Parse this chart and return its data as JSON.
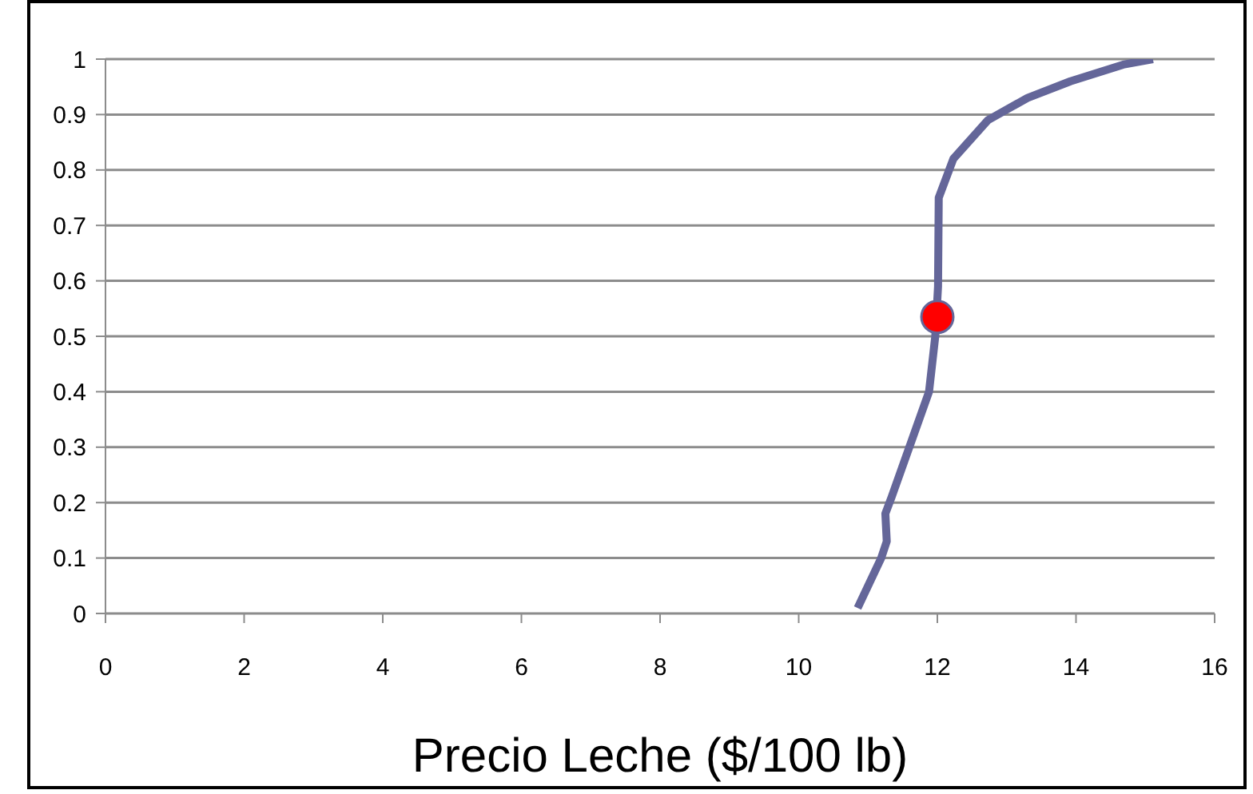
{
  "chart_data": {
    "type": "line",
    "xlabel": "Precio Leche ($/100 lb)",
    "series": [
      {
        "type": "line",
        "color": "#646699",
        "x": [
          10.85,
          11.19,
          11.27,
          11.25,
          11.34,
          11.88,
          11.97,
          12.01,
          12.02,
          12.23,
          12.73,
          13.3,
          13.92,
          14.68,
          15.11
        ],
        "values": [
          0.01,
          0.1,
          0.13,
          0.18,
          0.21,
          0.4,
          0.5,
          0.59,
          0.75,
          0.82,
          0.89,
          0.93,
          0.96,
          0.99,
          1.0
        ]
      },
      {
        "type": "scatter",
        "color": "#ff0000",
        "x": [
          12.0
        ],
        "values": [
          0.535
        ]
      }
    ],
    "xlim": [
      0,
      16
    ],
    "xticks": [
      0,
      2,
      4,
      6,
      8,
      10,
      12,
      14,
      16
    ],
    "ylim": [
      0,
      1
    ],
    "yticks": [
      0,
      0.1,
      0.2,
      0.3,
      0.4,
      0.5,
      0.6,
      0.7,
      0.8,
      0.9,
      1
    ],
    "grid": "y",
    "line_style": "solid",
    "legend": false
  }
}
